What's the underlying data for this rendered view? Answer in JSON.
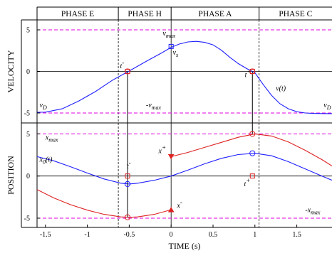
{
  "chart_data": {
    "type": "line",
    "xlabel": "TIME (s)",
    "xlim": [
      -1.6,
      1.92
    ],
    "xticks": [
      -1.5,
      -1,
      -0.5,
      0,
      0.5,
      1,
      1.5
    ],
    "xtick_labels": [
      "-1.5",
      "-1",
      "-0.5",
      "0",
      "0.5",
      "1",
      "1.5"
    ],
    "phases": [
      {
        "label": "PHASE E",
        "from": -1.6,
        "to": -0.63
      },
      {
        "label": "PHASE H",
        "from": -0.63,
        "to": 0.0
      },
      {
        "label": "PHASE A",
        "from": 0.0,
        "to": 1.05
      },
      {
        "label": "PHASE C",
        "from": 1.05,
        "to": 1.92
      }
    ],
    "panels": [
      {
        "id": "velocity",
        "ylabel": "VELOCITY",
        "ylim": [
          -6.2,
          6.2
        ],
        "yticks": [
          -5,
          0,
          5
        ],
        "ytick_labels": [
          "-5",
          "0",
          "5"
        ],
        "limit_lines": [
          5,
          -5
        ],
        "series": [
          {
            "color": "#1f1fff",
            "x": [
              -1.6,
              -1.5,
              -1.3,
              -1.1,
              -0.9,
              -0.7,
              -0.5,
              -0.3,
              -0.1,
              0.0,
              0.1,
              0.2,
              0.3,
              0.4,
              0.5,
              0.6,
              0.7,
              0.8,
              0.9,
              1.0,
              1.1,
              1.2,
              1.3,
              1.4,
              1.5,
              1.6,
              1.7,
              1.8,
              1.92
            ],
            "y": [
              -4.92,
              -4.9,
              -4.5,
              -3.55,
              -2.4,
              -1.05,
              0.05,
              1.2,
              2.3,
              2.9,
              3.3,
              3.55,
              3.62,
              3.5,
              3.2,
              2.55,
              1.7,
              0.95,
              0.35,
              -0.15,
              -1.6,
              -2.9,
              -3.9,
              -4.5,
              -4.85,
              -5.0,
              -5.05,
              -5.07,
              -5.08
            ]
          }
        ],
        "annotations": [
          {
            "text": "v_max",
            "x": -0.1,
            "y": 4.3
          },
          {
            "text": "v_s",
            "x": 0.02,
            "y": 2.0
          },
          {
            "text": "t-",
            "x": -0.61,
            "y": 0.4
          },
          {
            "text": "t+",
            "x": 0.88,
            "y": -0.7
          },
          {
            "text": "v(t)",
            "x": 1.25,
            "y": -2.3
          },
          {
            "text": "v_D",
            "x": -1.57,
            "y": -4.3
          },
          {
            "text": "v_D",
            "x": 1.82,
            "y": -4.3
          },
          {
            "text": "-v_max",
            "x": -0.3,
            "y": -4.3
          }
        ],
        "markers": [
          {
            "shape": "circle",
            "color": "#dd2222",
            "x": -0.52,
            "y": 0
          },
          {
            "shape": "square",
            "color": "#dd2222",
            "x": -0.52,
            "y": 0
          },
          {
            "shape": "square",
            "color": "#1f1fff",
            "x": 0.0,
            "y": 3.0
          },
          {
            "shape": "circle",
            "color": "#dd2222",
            "x": 0.97,
            "y": 0
          },
          {
            "shape": "square",
            "color": "#dd2222",
            "x": 0.97,
            "y": 0
          }
        ]
      },
      {
        "id": "position",
        "ylabel": "POSITION",
        "ylim": [
          -6.1,
          6.3
        ],
        "yticks": [
          -5,
          0,
          5
        ],
        "ytick_labels": [
          "-5",
          "0",
          "5"
        ],
        "limit_lines": [
          5,
          -5
        ],
        "series": [
          {
            "color": "#1f1fff",
            "x": [
              -1.6,
              -1.4,
              -1.2,
              -1.0,
              -0.8,
              -0.6,
              -0.5,
              -0.4,
              -0.2,
              0.0,
              0.2,
              0.4,
              0.6,
              0.8,
              1.0,
              1.2,
              1.4,
              1.6,
              1.8,
              1.92
            ],
            "y": [
              2.3,
              1.8,
              1.1,
              0.35,
              -0.35,
              -0.85,
              -0.95,
              -0.85,
              -0.5,
              0.0,
              0.7,
              1.45,
              2.1,
              2.55,
              2.7,
              2.4,
              1.7,
              0.85,
              0.0,
              -0.5
            ]
          },
          {
            "color": "#dd2222",
            "x": [
              -1.6,
              -1.4,
              -1.2,
              -1.0,
              -0.8,
              -0.6,
              -0.5,
              -0.4,
              -0.2,
              0.0
            ],
            "y": [
              -1.6,
              -2.6,
              -3.4,
              -4.05,
              -4.55,
              -4.85,
              -4.9,
              -4.85,
              -4.55,
              -4.0
            ]
          },
          {
            "color": "#dd2222",
            "x": [
              0.0,
              0.2,
              0.4,
              0.6,
              0.8,
              1.0,
              1.2,
              1.4,
              1.6,
              1.8,
              1.92
            ],
            "y": [
              2.3,
              2.8,
              3.4,
              4.0,
              4.6,
              5.0,
              4.75,
              4.05,
              3.05,
              1.95,
              1.2
            ]
          }
        ],
        "annotations": [
          {
            "text": "x_max",
            "x": -1.5,
            "y": 4.3
          },
          {
            "text": "x0(t)",
            "x": -1.57,
            "y": 1.7
          },
          {
            "text": "x+",
            "x": -0.15,
            "y": 2.7
          },
          {
            "text": "t-",
            "x": -0.53,
            "y": 0.9
          },
          {
            "text": "t+",
            "x": 0.87,
            "y": -1.2
          },
          {
            "text": "x-",
            "x": 0.07,
            "y": -3.8
          },
          {
            "text": "-x_max",
            "x": 1.6,
            "y": -4.3
          }
        ],
        "markers": [
          {
            "shape": "circle",
            "color": "#1f1fff",
            "x": -0.52,
            "y": -0.95
          },
          {
            "shape": "square",
            "color": "#dd2222",
            "x": -0.52,
            "y": 0
          },
          {
            "shape": "circle",
            "color": "#dd2222",
            "x": -0.52,
            "y": -4.9
          },
          {
            "shape": "triangle",
            "color": "#dd2222",
            "x": 0.0,
            "y": 2.3
          },
          {
            "shape": "triangle",
            "color": "#dd2222",
            "x": 0.0,
            "y": -4.0
          },
          {
            "shape": "circle",
            "color": "#dd2222",
            "x": 0.97,
            "y": 5.0
          },
          {
            "shape": "circle",
            "color": "#1f1fff",
            "x": 0.97,
            "y": 2.7
          },
          {
            "shape": "square",
            "color": "#dd2222",
            "x": 0.97,
            "y": 0
          }
        ]
      }
    ],
    "connectors": [
      {
        "x": -0.52,
        "panel": "velocity",
        "y_from": 0,
        "to_panel": "position",
        "y_to": -4.9
      },
      {
        "x": 0.97,
        "panel": "velocity",
        "y_from": 0,
        "to_panel": "position",
        "y_to": 5.0
      }
    ],
    "phase_boundaries": [
      -0.63,
      0.0,
      1.05
    ],
    "colors": {
      "blue": "#1f1fff",
      "red": "#dd2222",
      "limit": "#e000e0"
    }
  }
}
